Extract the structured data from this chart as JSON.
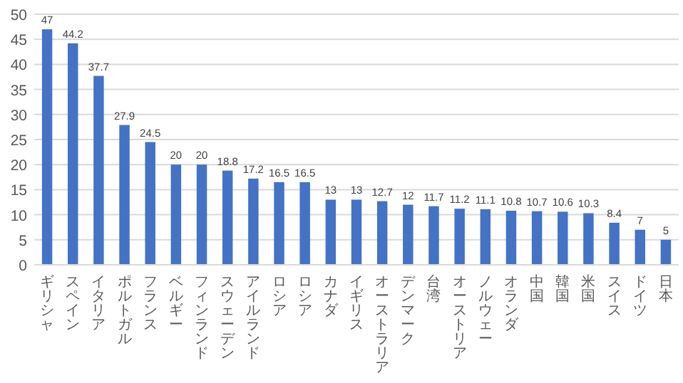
{
  "chart_data": {
    "type": "bar",
    "categories": [
      "ギリシャ",
      "スペイン",
      "イタリア",
      "ポルトガル",
      "フランス",
      "ベルギー",
      "フィンランド",
      "スウェーデン",
      "アイルランド",
      "ロシア",
      "ロシア",
      "カナダ",
      "イギリス",
      "オーストラリア",
      "デンマーク",
      "台湾",
      "オーストリア",
      "ノルウェー",
      "オランダ",
      "中国",
      "韓国",
      "米国",
      "スイス",
      "ドイツ",
      "日本"
    ],
    "values": [
      47,
      44.2,
      37.7,
      27.9,
      24.5,
      20,
      20,
      18.8,
      17.2,
      16.5,
      16.5,
      13,
      13,
      12.7,
      12,
      11.7,
      11.2,
      11.1,
      10.8,
      10.7,
      10.6,
      10.3,
      8.4,
      7,
      5
    ],
    "color": "#4472c4",
    "ylim": [
      0,
      50
    ],
    "yticks": [
      0,
      5,
      10,
      15,
      20,
      25,
      30,
      35,
      40,
      45,
      50
    ],
    "grid": "y",
    "data_labels": true
  }
}
